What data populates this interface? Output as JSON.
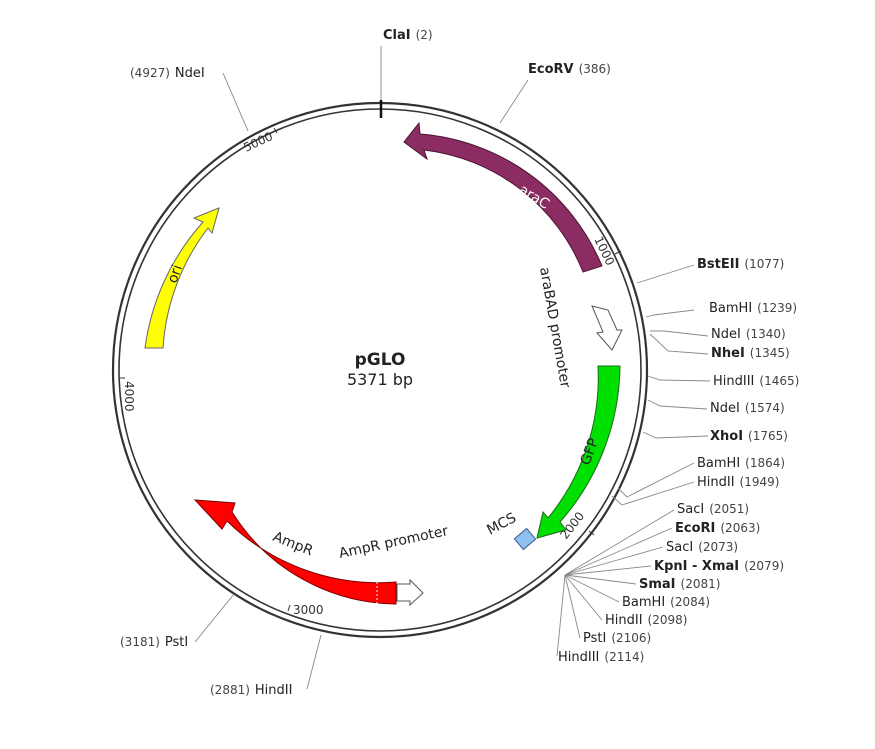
{
  "plasmid": {
    "name": "pGLO",
    "size": "5371 bp"
  },
  "colors": {
    "araC": "#8b2c62",
    "ori": "#ffff00",
    "GFP": "#00e000",
    "AmpR": "#ff0000",
    "MCS": "#8fc0f0",
    "promoter": "#ffffff",
    "backbone": "#333333"
  },
  "features": [
    {
      "name": "araC",
      "label": "araC"
    },
    {
      "name": "ori",
      "label": "ori"
    },
    {
      "name": "araBAD promoter",
      "label": "araBAD promoter"
    },
    {
      "name": "GFP",
      "label": "GFP"
    },
    {
      "name": "MCS",
      "label": "MCS"
    },
    {
      "name": "AmpR promoter",
      "label": "AmpR promoter"
    },
    {
      "name": "AmpR",
      "label": "AmpR"
    }
  ],
  "ticks": [
    "1000",
    "2000",
    "3000",
    "4000",
    "5000"
  ],
  "sites": [
    {
      "name": "ClaI",
      "pos": "(2)",
      "bold": true
    },
    {
      "name": "EcoRV",
      "pos": "(386)",
      "bold": true
    },
    {
      "name": "BstEII",
      "pos": "(1077)",
      "bold": true
    },
    {
      "name": "BamHI",
      "pos": "(1239)",
      "bold": false
    },
    {
      "name": "NdeI",
      "pos": "(1340)",
      "bold": false
    },
    {
      "name": "NheI",
      "pos": "(1345)",
      "bold": true
    },
    {
      "name": "HindIII",
      "pos": "(1465)",
      "bold": false
    },
    {
      "name": "NdeI",
      "pos": "(1574)",
      "bold": false
    },
    {
      "name": "XhoI",
      "pos": "(1765)",
      "bold": true
    },
    {
      "name": "BamHI",
      "pos": "(1864)",
      "bold": false
    },
    {
      "name": "HindII",
      "pos": "(1949)",
      "bold": false
    },
    {
      "name": "SacI",
      "pos": "(2051)",
      "bold": false
    },
    {
      "name": "EcoRI",
      "pos": "(2063)",
      "bold": true
    },
    {
      "name": "SacI",
      "pos": "(2073)",
      "bold": false
    },
    {
      "name": "KpnI - XmaI",
      "pos": "(2079)",
      "bold": true
    },
    {
      "name": "SmaI",
      "pos": "(2081)",
      "bold": true
    },
    {
      "name": "BamHI",
      "pos": "(2084)",
      "bold": false
    },
    {
      "name": "HindII",
      "pos": "(2098)",
      "bold": false
    },
    {
      "name": "PstI",
      "pos": "(2106)",
      "bold": false
    },
    {
      "name": "HindIII",
      "pos": "(2114)",
      "bold": false
    },
    {
      "name": "HindII",
      "pos": "(2881)",
      "bold": false
    },
    {
      "name": "PstI",
      "pos": "(3181)",
      "bold": false
    },
    {
      "name": "NdeI",
      "pos": "(4927)",
      "bold": false
    }
  ]
}
